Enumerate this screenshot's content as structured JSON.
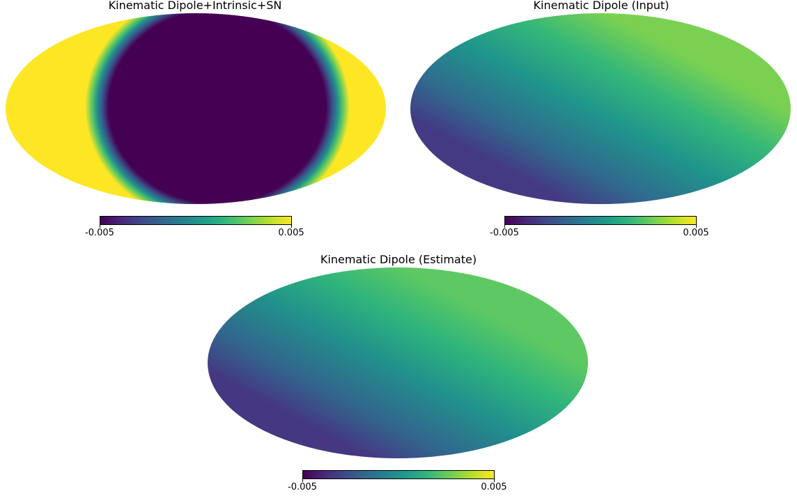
{
  "chart_data": [
    {
      "type": "heatmap",
      "projection": "mollweide",
      "title": "Kinematic Dipole+Intrinsic+SN",
      "colormap": "viridis",
      "colorbar": {
        "min": -0.005,
        "max": 0.005,
        "tick_labels": [
          "-0.005",
          "0.005"
        ]
      },
      "pattern": "saturated central band"
    },
    {
      "type": "heatmap",
      "projection": "mollweide",
      "title": "Kinematic Dipole (Input)",
      "colormap": "viridis",
      "colorbar": {
        "min": -0.005,
        "max": 0.005,
        "tick_labels": [
          "-0.005",
          "0.005"
        ]
      },
      "pattern": "smooth dipole, minimum lower-left, maximum upper-right"
    },
    {
      "type": "heatmap",
      "projection": "mollweide",
      "title": "Kinematic Dipole (Estimate)",
      "colormap": "viridis",
      "colorbar": {
        "min": -0.005,
        "max": 0.005,
        "tick_labels": [
          "-0.005",
          "0.005"
        ]
      },
      "pattern": "smooth dipole, minimum lower-left, maximum upper-right"
    }
  ]
}
